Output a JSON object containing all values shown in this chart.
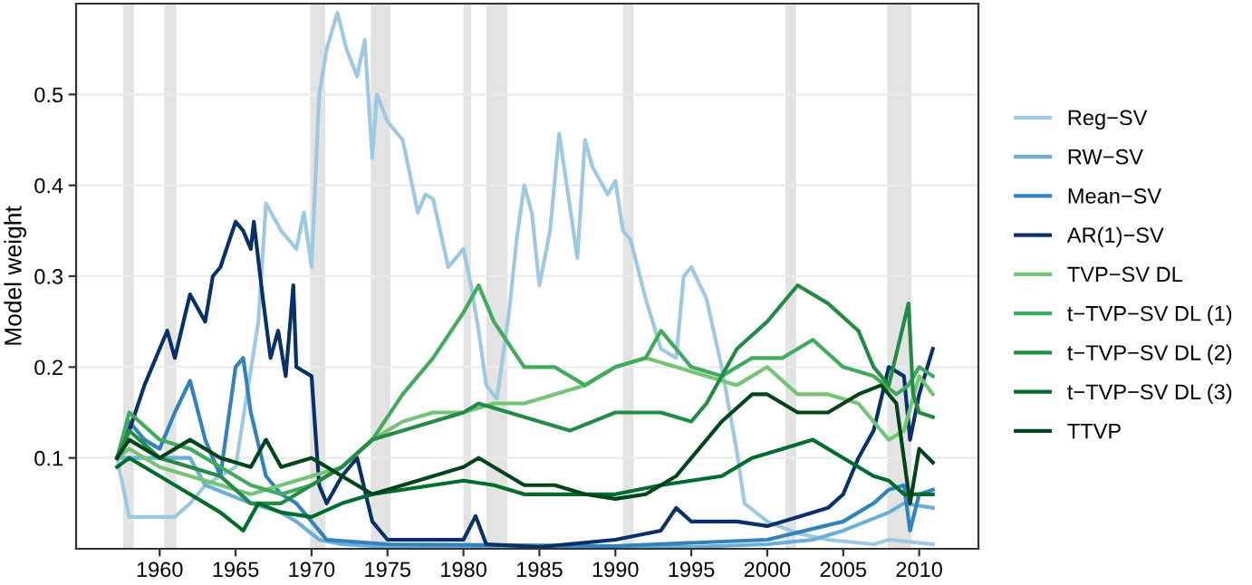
{
  "chart_data": {
    "type": "line",
    "ylabel": "Model weight",
    "xlim": [
      1954.5,
      2013.9
    ],
    "ylim": [
      0,
      0.6
    ],
    "xticks": [
      1960,
      1965,
      1970,
      1975,
      1980,
      1985,
      1990,
      1995,
      2000,
      2005,
      2010
    ],
    "yticks": [
      0.1,
      0.2,
      0.3,
      0.4,
      0.5
    ],
    "grid": "y",
    "legend": "right",
    "line_style": "solid",
    "marker": "none",
    "bands": [
      {
        "axis": "x",
        "from": 1957.6,
        "to": 1958.3,
        "color": "#e3e3e3"
      },
      {
        "axis": "x",
        "from": 1960.3,
        "to": 1961.1,
        "color": "#e3e3e3"
      },
      {
        "axis": "x",
        "from": 1969.9,
        "to": 1970.9,
        "color": "#e3e3e3"
      },
      {
        "axis": "x",
        "from": 1973.9,
        "to": 1975.2,
        "color": "#e3e3e3"
      },
      {
        "axis": "x",
        "from": 1980.0,
        "to": 1980.5,
        "color": "#e3e3e3"
      },
      {
        "axis": "x",
        "from": 1981.5,
        "to": 1982.9,
        "color": "#e3e3e3"
      },
      {
        "axis": "x",
        "from": 1990.5,
        "to": 1991.2,
        "color": "#e3e3e3"
      },
      {
        "axis": "x",
        "from": 2001.2,
        "to": 2001.9,
        "color": "#e3e3e3"
      },
      {
        "axis": "x",
        "from": 2007.9,
        "to": 2009.5,
        "color": "#e3e3e3"
      }
    ],
    "series": [
      {
        "name": "Reg−SV",
        "color": "#9ecae1",
        "x": [
          1957.2,
          1958,
          1961,
          1962,
          1963,
          1965,
          1966.5,
          1967,
          1968,
          1969,
          1969.5,
          1970,
          1970.5,
          1971,
          1971.7,
          1972.3,
          1973,
          1973.5,
          1974,
          1974.3,
          1975,
          1976,
          1977,
          1977.5,
          1978,
          1979,
          1980,
          1980.5,
          1981,
          1981.5,
          1982.2,
          1983,
          1983.5,
          1984,
          1984.5,
          1985,
          1985.7,
          1986.3,
          1986.8,
          1987.5,
          1988,
          1988.5,
          1989.5,
          1990,
          1990.5,
          1991,
          1992,
          1993,
          1994,
          1994.5,
          1995,
          1996,
          1997,
          1998,
          1998.5,
          2000,
          2002,
          2004,
          2007,
          2008,
          2010.9
        ],
        "values": [
          0.1,
          0.035,
          0.035,
          0.05,
          0.07,
          0.09,
          0.25,
          0.38,
          0.35,
          0.33,
          0.37,
          0.31,
          0.5,
          0.55,
          0.59,
          0.55,
          0.52,
          0.56,
          0.43,
          0.5,
          0.47,
          0.45,
          0.37,
          0.39,
          0.385,
          0.31,
          0.33,
          0.29,
          0.24,
          0.18,
          0.165,
          0.26,
          0.34,
          0.4,
          0.37,
          0.29,
          0.35,
          0.457,
          0.4,
          0.32,
          0.45,
          0.42,
          0.39,
          0.405,
          0.35,
          0.34,
          0.275,
          0.22,
          0.21,
          0.3,
          0.31,
          0.275,
          0.2,
          0.107,
          0.05,
          0.03,
          0.017,
          0.01,
          0.005,
          0.01,
          0.005
        ]
      },
      {
        "name": "RW−SV",
        "color": "#6baed6",
        "x": [
          1957.2,
          1958,
          1960,
          1962,
          1963,
          1966,
          1968,
          1969,
          1970.5,
          1972,
          1975,
          1985,
          1995,
          2000,
          2003,
          2005,
          2008,
          2009,
          2010.9
        ],
        "values": [
          0.1,
          0.1,
          0.1,
          0.1,
          0.07,
          0.05,
          0.04,
          0.03,
          0.01,
          0.005,
          0.002,
          0.002,
          0.002,
          0.005,
          0.01,
          0.02,
          0.04,
          0.05,
          0.045
        ]
      },
      {
        "name": "Mean−SV",
        "color": "#3182bd",
        "x": [
          1957.2,
          1958,
          1959,
          1960,
          1961,
          1962,
          1963,
          1964,
          1965,
          1965.5,
          1966,
          1967,
          1968,
          1969,
          1970,
          1971,
          1975,
          1990,
          2000,
          2005,
          2007,
          2008,
          2009,
          2009.4,
          2010,
          2010.9
        ],
        "values": [
          0.1,
          0.14,
          0.12,
          0.11,
          0.15,
          0.185,
          0.12,
          0.08,
          0.2,
          0.21,
          0.15,
          0.08,
          0.06,
          0.05,
          0.03,
          0.01,
          0.005,
          0.003,
          0.01,
          0.03,
          0.05,
          0.065,
          0.07,
          0.02,
          0.06,
          0.065
        ]
      },
      {
        "name": "AR(1)−SV",
        "color": "#08306b",
        "x": [
          1957.2,
          1958,
          1959,
          1960,
          1960.5,
          1961,
          1962,
          1963,
          1963.5,
          1964,
          1965,
          1965.5,
          1966,
          1966.2,
          1966.8,
          1967.3,
          1967.8,
          1968.3,
          1968.8,
          1969,
          1970,
          1970.5,
          1971,
          1972,
          1973,
          1974,
          1975,
          1978,
          1980,
          1980.8,
          1981.5,
          1985,
          1990,
          1993,
          1994,
          1995,
          1998,
          2000,
          2002,
          2004,
          2005,
          2006,
          2007,
          2008,
          2009,
          2009.4,
          2010,
          2010.9
        ],
        "values": [
          0.1,
          0.13,
          0.18,
          0.22,
          0.24,
          0.21,
          0.28,
          0.25,
          0.3,
          0.31,
          0.36,
          0.35,
          0.33,
          0.36,
          0.275,
          0.21,
          0.24,
          0.19,
          0.29,
          0.2,
          0.19,
          0.07,
          0.05,
          0.08,
          0.1,
          0.03,
          0.01,
          0.01,
          0.01,
          0.036,
          0.005,
          0.002,
          0.01,
          0.02,
          0.045,
          0.03,
          0.03,
          0.025,
          0.035,
          0.045,
          0.06,
          0.1,
          0.13,
          0.2,
          0.19,
          0.12,
          0.17,
          0.22
        ]
      },
      {
        "name": "TVP−SV DL",
        "color": "#74c476",
        "x": [
          1957.2,
          1958,
          1960,
          1962,
          1964,
          1966,
          1968,
          1970,
          1972,
          1974,
          1976,
          1978,
          1980,
          1982,
          1984,
          1986,
          1988,
          1990,
          1992,
          1994,
          1996,
          1998,
          2000,
          2002,
          2004,
          2006,
          2008,
          2009,
          2010,
          2010.9
        ],
        "values": [
          0.1,
          0.11,
          0.09,
          0.08,
          0.07,
          0.06,
          0.07,
          0.08,
          0.09,
          0.12,
          0.14,
          0.15,
          0.15,
          0.16,
          0.16,
          0.17,
          0.18,
          0.2,
          0.21,
          0.2,
          0.19,
          0.18,
          0.2,
          0.17,
          0.17,
          0.16,
          0.12,
          0.13,
          0.19,
          0.17
        ]
      },
      {
        "name": "t−TVP−SV DL (1)",
        "color": "#41ab5d",
        "x": [
          1957.2,
          1958,
          1960,
          1962,
          1964,
          1966,
          1968,
          1970,
          1972,
          1974,
          1976,
          1978,
          1980,
          1981,
          1982,
          1984,
          1986,
          1988,
          1990,
          1992,
          1993,
          1995,
          1997,
          1999,
          2001,
          2003,
          2005,
          2007,
          2008.5,
          2009.3,
          2010,
          2010.9
        ],
        "values": [
          0.1,
          0.15,
          0.12,
          0.11,
          0.09,
          0.07,
          0.06,
          0.07,
          0.09,
          0.12,
          0.17,
          0.21,
          0.26,
          0.29,
          0.25,
          0.2,
          0.2,
          0.18,
          0.2,
          0.21,
          0.24,
          0.2,
          0.19,
          0.21,
          0.21,
          0.23,
          0.2,
          0.19,
          0.17,
          0.18,
          0.2,
          0.19
        ]
      },
      {
        "name": "t−TVP−SV DL (2)",
        "color": "#238b45",
        "x": [
          1957.2,
          1958,
          1960,
          1962,
          1964,
          1966,
          1968,
          1970,
          1972,
          1974,
          1976,
          1978,
          1980,
          1981,
          1983,
          1985,
          1987,
          1990,
          1993,
          1995,
          1996,
          1998,
          2000,
          2002,
          2004,
          2006,
          2007,
          2008,
          2009.3,
          2009.6,
          2010,
          2010.9
        ],
        "values": [
          0.1,
          0.13,
          0.1,
          0.09,
          0.08,
          0.05,
          0.05,
          0.07,
          0.09,
          0.12,
          0.13,
          0.14,
          0.15,
          0.16,
          0.15,
          0.14,
          0.13,
          0.15,
          0.15,
          0.14,
          0.16,
          0.22,
          0.25,
          0.29,
          0.27,
          0.24,
          0.2,
          0.18,
          0.27,
          0.17,
          0.15,
          0.145
        ]
      },
      {
        "name": "t−TVP−SV DL (3)",
        "color": "#006d2c",
        "x": [
          1957.2,
          1958,
          1960,
          1962,
          1964,
          1965.5,
          1966.5,
          1968,
          1970,
          1972,
          1974,
          1976,
          1978,
          1980,
          1982,
          1984,
          1986,
          1988,
          1990,
          1993,
          1995,
          1997,
          1999,
          2001,
          2003,
          2005,
          2007,
          2008,
          2009,
          2010,
          2010.9
        ],
        "values": [
          0.09,
          0.1,
          0.08,
          0.06,
          0.04,
          0.02,
          0.05,
          0.04,
          0.035,
          0.05,
          0.06,
          0.065,
          0.07,
          0.075,
          0.07,
          0.06,
          0.06,
          0.06,
          0.06,
          0.07,
          0.075,
          0.08,
          0.1,
          0.11,
          0.12,
          0.1,
          0.08,
          0.075,
          0.06,
          0.06,
          0.06
        ]
      },
      {
        "name": "TTVP",
        "color": "#00441b",
        "x": [
          1957.2,
          1958,
          1960,
          1962,
          1964,
          1966,
          1967,
          1968,
          1970,
          1972,
          1974,
          1976,
          1978,
          1980,
          1981,
          1982,
          1984,
          1986,
          1988,
          1990,
          1992,
          1994,
          1996,
          1997,
          1999,
          2000,
          2002,
          2004,
          2006,
          2007.5,
          2008.5,
          2009.4,
          2010,
          2010.9
        ],
        "values": [
          0.1,
          0.12,
          0.1,
          0.12,
          0.1,
          0.09,
          0.12,
          0.09,
          0.1,
          0.08,
          0.06,
          0.07,
          0.08,
          0.09,
          0.1,
          0.09,
          0.07,
          0.07,
          0.06,
          0.055,
          0.06,
          0.08,
          0.12,
          0.14,
          0.17,
          0.17,
          0.15,
          0.15,
          0.17,
          0.18,
          0.16,
          0.05,
          0.11,
          0.095
        ]
      }
    ]
  }
}
